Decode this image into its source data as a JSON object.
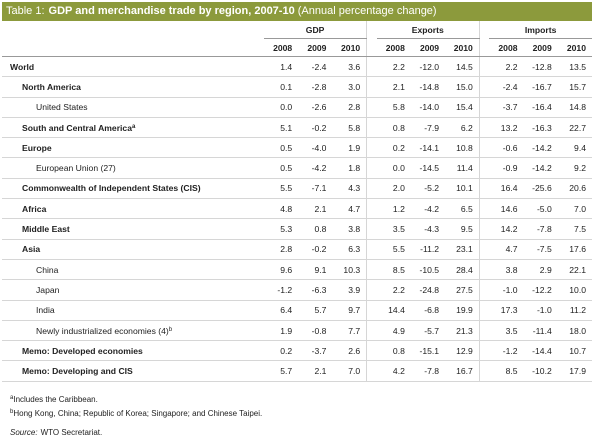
{
  "title": {
    "label": "Table 1:",
    "main": "GDP and merchandise trade by region, 2007-10",
    "note": "(Annual percentage change)"
  },
  "header": {
    "groups": [
      "GDP",
      "Exports",
      "Imports"
    ],
    "years": [
      "2008",
      "2009",
      "2010"
    ]
  },
  "table": {
    "rows": [
      {
        "label": "World",
        "values": [
          "1.4",
          "-2.4",
          "3.6",
          "2.2",
          "-12.0",
          "14.5",
          "2.2",
          "-12.8",
          "13.5"
        ]
      },
      {
        "label": "North America",
        "values": [
          "0.1",
          "-2.8",
          "3.0",
          "2.1",
          "-14.8",
          "15.0",
          "-2.4",
          "-16.7",
          "15.7"
        ]
      },
      {
        "label": "United States",
        "values": [
          "0.0",
          "-2.6",
          "2.8",
          "5.8",
          "-14.0",
          "15.4",
          "-3.7",
          "-16.4",
          "14.8"
        ]
      },
      {
        "label": "South and Central America",
        "note": "a",
        "values": [
          "5.1",
          "-0.2",
          "5.8",
          "0.8",
          "-7.9",
          "6.2",
          "13.2",
          "-16.3",
          "22.7"
        ]
      },
      {
        "label": "Europe",
        "values": [
          "0.5",
          "-4.0",
          "1.9",
          "0.2",
          "-14.1",
          "10.8",
          "-0.6",
          "-14.2",
          "9.4"
        ]
      },
      {
        "label": "European Union (27)",
        "values": [
          "0.5",
          "-4.2",
          "1.8",
          "0.0",
          "-14.5",
          "11.4",
          "-0.9",
          "-14.2",
          "9.2"
        ]
      },
      {
        "label": "Commonwealth of Independent States (CIS)",
        "values": [
          "5.5",
          "-7.1",
          "4.3",
          "2.0",
          "-5.2",
          "10.1",
          "16.4",
          "-25.6",
          "20.6"
        ]
      },
      {
        "label": "Africa",
        "values": [
          "4.8",
          "2.1",
          "4.7",
          "1.2",
          "-4.2",
          "6.5",
          "14.6",
          "-5.0",
          "7.0"
        ]
      },
      {
        "label": "Middle East",
        "values": [
          "5.3",
          "0.8",
          "3.8",
          "3.5",
          "-4.3",
          "9.5",
          "14.2",
          "-7.8",
          "7.5"
        ]
      },
      {
        "label": "Asia",
        "values": [
          "2.8",
          "-0.2",
          "6.3",
          "5.5",
          "-11.2",
          "23.1",
          "4.7",
          "-7.5",
          "17.6"
        ]
      },
      {
        "label": "China",
        "values": [
          "9.6",
          "9.1",
          "10.3",
          "8.5",
          "-10.5",
          "28.4",
          "3.8",
          "2.9",
          "22.1"
        ]
      },
      {
        "label": "Japan",
        "values": [
          "-1.2",
          "-6.3",
          "3.9",
          "2.2",
          "-24.8",
          "27.5",
          "-1.0",
          "-12.2",
          "10.0"
        ]
      },
      {
        "label": "India",
        "values": [
          "6.4",
          "5.7",
          "9.7",
          "14.4",
          "-6.8",
          "19.9",
          "17.3",
          "-1.0",
          "11.2"
        ]
      },
      {
        "label": "Newly industrialized economies (4)",
        "note": "b",
        "values": [
          "1.9",
          "-0.8",
          "7.7",
          "4.9",
          "-5.7",
          "21.3",
          "3.5",
          "-11.4",
          "18.0"
        ]
      },
      {
        "label": "Memo: Developed economies",
        "values": [
          "0.2",
          "-3.7",
          "2.6",
          "0.8",
          "-15.1",
          "12.9",
          "-1.2",
          "-14.4",
          "10.7"
        ]
      },
      {
        "label": "Memo: Developing and CIS",
        "values": [
          "5.7",
          "2.1",
          "7.0",
          "4.2",
          "-7.8",
          "16.7",
          "8.5",
          "-10.2",
          "17.9"
        ]
      }
    ]
  },
  "footnotes": [
    {
      "mark": "a",
      "text": "Includes the Caribbean."
    },
    {
      "mark": "b",
      "text": "Hong Kong, China; Republic of Korea; Singapore; and Chinese Taipei."
    }
  ],
  "source": {
    "label": "Source:",
    "text": "WTO Secretariat."
  }
}
